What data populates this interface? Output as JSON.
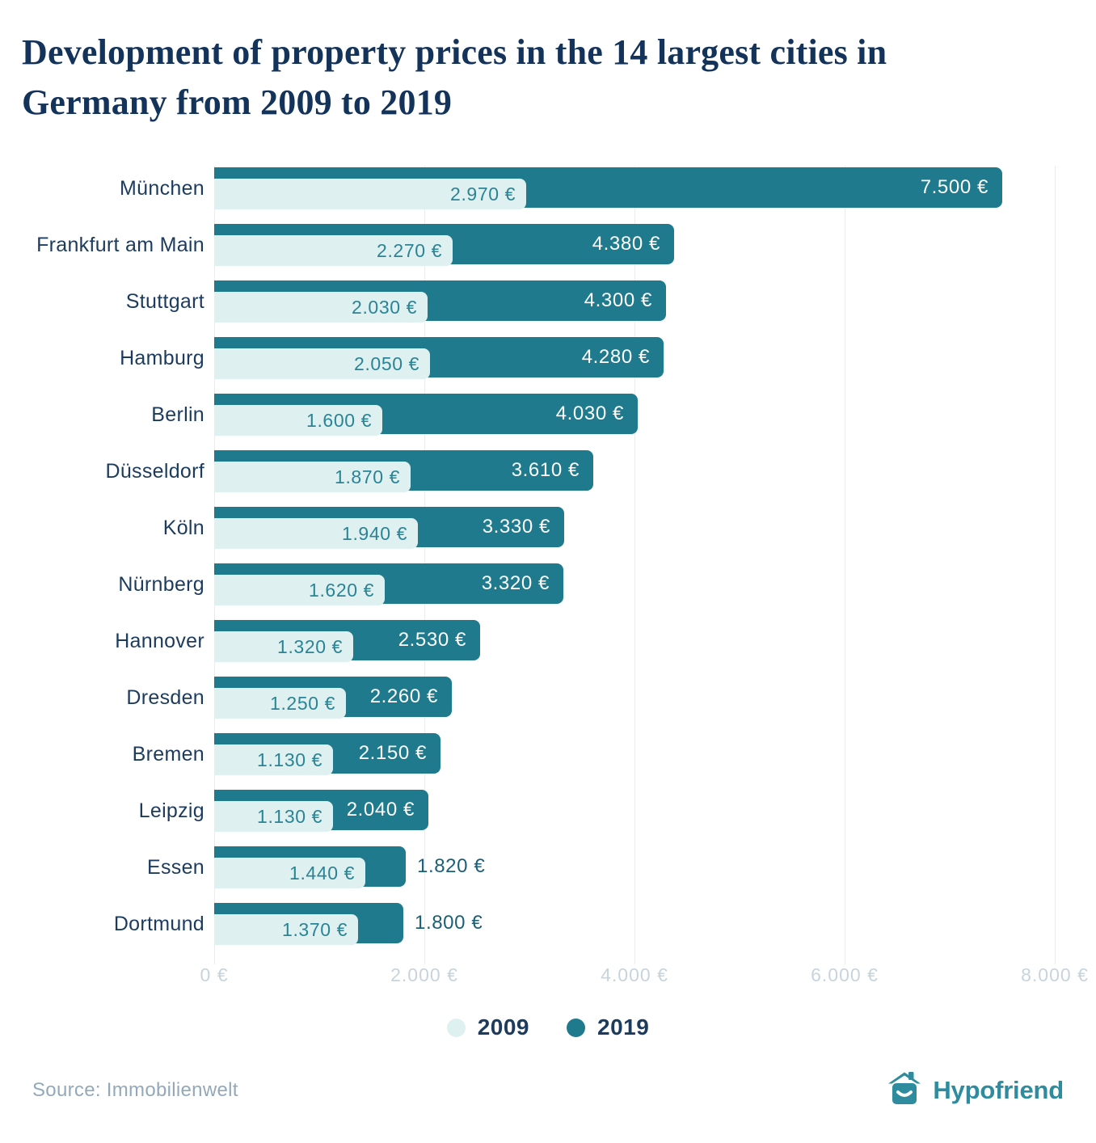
{
  "title": "Development of property prices in the 14 largest cities in Germany from 2009 to 2019",
  "chart_data": {
    "type": "bar",
    "orientation": "horizontal",
    "title": "Development of property prices in the 14 largest cities in Germany from 2009 to 2019",
    "categories": [
      "München",
      "Frankfurt am Main",
      "Stuttgart",
      "Hamburg",
      "Berlin",
      "Düsseldorf",
      "Köln",
      "Nürnberg",
      "Hannover",
      "Dresden",
      "Bremen",
      "Leipzig",
      "Essen",
      "Dortmund"
    ],
    "series": [
      {
        "name": "2009",
        "color": "#def0ef",
        "values": [
          2970,
          2270,
          2030,
          2050,
          1600,
          1870,
          1940,
          1620,
          1320,
          1250,
          1130,
          1130,
          1440,
          1370
        ],
        "labels": [
          "2.970 €",
          "2.270 €",
          "2.030 €",
          "2.050 €",
          "1.600 €",
          "1.870 €",
          "1.940 €",
          "1.620 €",
          "1.320 €",
          "1.250 €",
          "1.130 €",
          "1.130 €",
          "1.440 €",
          "1.370 €"
        ]
      },
      {
        "name": "2019",
        "color": "#1e7a8c",
        "values": [
          7500,
          4380,
          4300,
          4280,
          4030,
          3610,
          3330,
          3320,
          2530,
          2260,
          2150,
          2040,
          1820,
          1800
        ],
        "labels": [
          "7.500 €",
          "4.380 €",
          "4.300 €",
          "4.280 €",
          "4.030 €",
          "3.610 €",
          "3.330 €",
          "3.320 €",
          "2.530 €",
          "2.260 €",
          "2.150 €",
          "2.040 €",
          "1.820 €",
          "1.800 €"
        ]
      }
    ],
    "x_axis": {
      "max": 8000,
      "ticks": [
        {
          "value": 0,
          "label": "0 €"
        },
        {
          "value": 2000,
          "label": "2.000 €"
        },
        {
          "value": 4000,
          "label": "4.000 €"
        },
        {
          "value": 6000,
          "label": "6.000 €"
        },
        {
          "value": 8000,
          "label": "8.000 €"
        }
      ]
    },
    "grid": "vertical",
    "legend_position": "bottom"
  },
  "legend": {
    "items": [
      {
        "label": "2009",
        "color": "#def0ef"
      },
      {
        "label": "2019",
        "color": "#1e7a8c"
      }
    ]
  },
  "footer": {
    "source": "Source: Immobilienwelt",
    "brand": "Hypofriend",
    "logo_icon": "house-smile-icon",
    "brand_color": "#2e8c9e"
  }
}
